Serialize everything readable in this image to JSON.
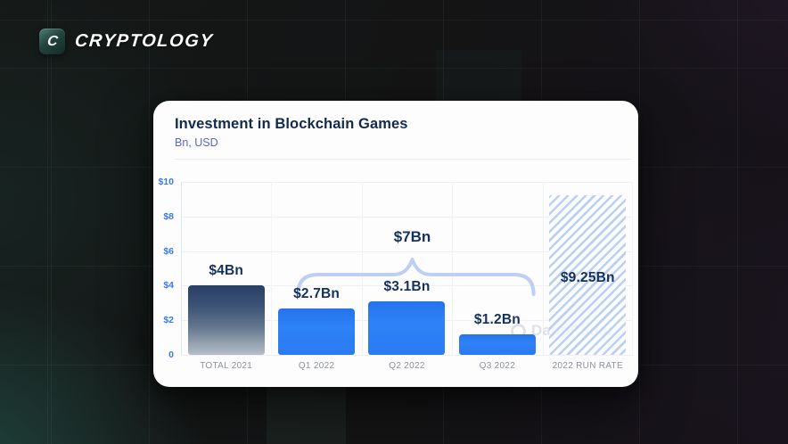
{
  "logo": {
    "icon_letter": "C",
    "wordmark": "CRYPTOLOGY"
  },
  "card": {
    "title": "Investment in Blockchain Games",
    "subtitle": "Bn, USD"
  },
  "watermark": {
    "text": "DappRadar"
  },
  "colors": {
    "accent_blue": "#2b7af2",
    "navy_text": "#13294d",
    "axis_label_blue": "#3c7ae6",
    "category_gray": "#8d929b",
    "hatch_blue": "#bacef1",
    "brace_blue": "#bdd0f3",
    "card_bg": "#fdfdfe",
    "page_bg_dark": "#141415",
    "page_teal_glow": "#265f55",
    "logo_badge_teal": "#23443e"
  },
  "chart_data": {
    "type": "bar",
    "title": "Investment in Blockchain Games",
    "units": "Bn, USD",
    "categories": [
      "TOTAL 2021",
      "Q1 2022",
      "Q2 2022",
      "Q3 2022",
      "2022 RUN RATE"
    ],
    "values": [
      4,
      2.7,
      3.1,
      1.2,
      9.25
    ],
    "bar_labels": [
      "$4Bn",
      "$2.7Bn",
      "$3.1Bn",
      "$1.2Bn",
      "$9.25Bn"
    ],
    "bar_styles": [
      "navy-gradient",
      "blue",
      "blue",
      "blue",
      "hatched"
    ],
    "ylim": [
      0,
      10
    ],
    "yticks": [
      "$10",
      "$8",
      "$6",
      "$4",
      "$2",
      "0"
    ],
    "grid": true,
    "legend": false,
    "annotation": {
      "label": "$7Bn",
      "type": "brace",
      "spans": [
        "Q1 2022",
        "Q3 2022"
      ]
    }
  }
}
